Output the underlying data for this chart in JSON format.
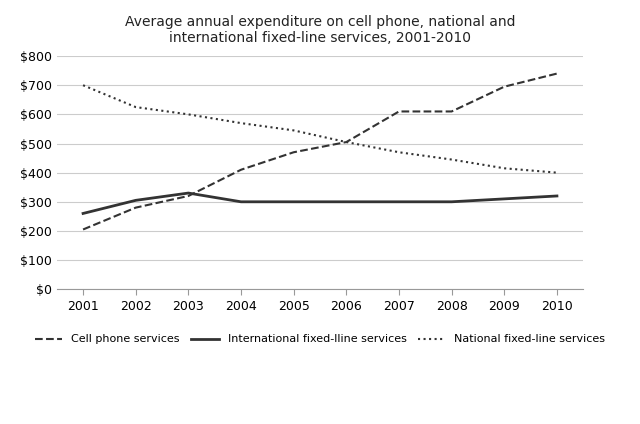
{
  "years": [
    2001,
    2002,
    2003,
    2004,
    2005,
    2006,
    2007,
    2008,
    2009,
    2010
  ],
  "cell_phone": [
    205,
    280,
    320,
    410,
    470,
    505,
    610,
    610,
    695,
    740
  ],
  "intl_fixed": [
    260,
    305,
    330,
    300,
    300,
    300,
    300,
    300,
    310,
    320
  ],
  "natl_fixed": [
    700,
    625,
    600,
    570,
    545,
    505,
    470,
    445,
    415,
    400
  ],
  "title_line1": "Average annual expenditure on cell phone, national and",
  "title_line2": "international fixed-line services, 2001-2010",
  "ylim": [
    0,
    800
  ],
  "yticks": [
    0,
    100,
    200,
    300,
    400,
    500,
    600,
    700,
    800
  ],
  "ytick_labels": [
    "$0",
    "$100",
    "$200",
    "$300",
    "$400",
    "$500",
    "$600",
    "$700",
    "$800"
  ],
  "cell_phone_label": "Cell phone services",
  "intl_fixed_label": "International fixed-lline services",
  "natl_fixed_label": "National fixed-line services",
  "background_color": "#ffffff",
  "grid_color": "#cccccc",
  "line_color": "#333333"
}
